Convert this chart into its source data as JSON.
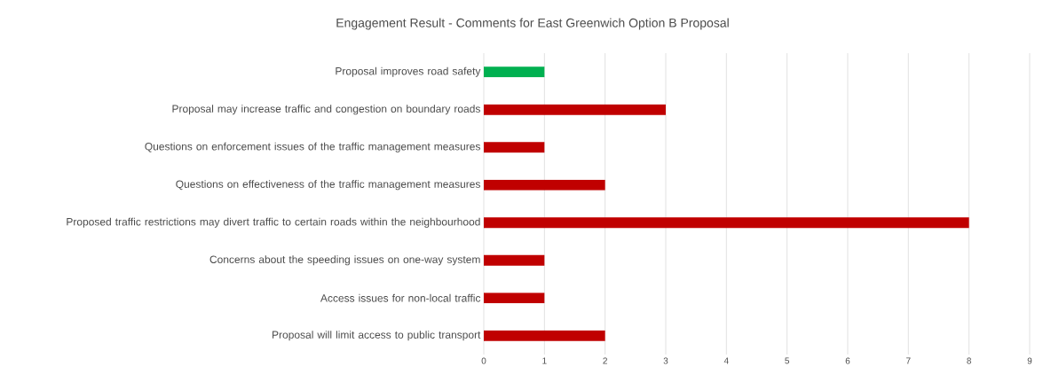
{
  "chart_data": {
    "type": "bar",
    "orientation": "horizontal",
    "title": "Engagement Result - Comments for East Greenwich Option B Proposal",
    "categories": [
      "Proposal improves road safety",
      "Proposal may increase traffic and congestion on boundary roads",
      "Questions on enforcement issues of the traffic management measures",
      "Questions on effectiveness of the traffic management measures",
      "Proposed traffic restrictions may divert traffic to certain roads within the neighbourhood",
      "Concerns about the speeding issues on one-way system",
      "Access issues for non-local traffic",
      "Proposal will limit access to public transport"
    ],
    "values": [
      1,
      3,
      1,
      2,
      8,
      1,
      1,
      2
    ],
    "colors": [
      "#00b050",
      "#c00000",
      "#c00000",
      "#c00000",
      "#c00000",
      "#c00000",
      "#c00000",
      "#c00000"
    ],
    "xlim": [
      0,
      9
    ],
    "xticks": [
      0,
      1,
      2,
      3,
      4,
      5,
      6,
      7,
      8,
      9
    ],
    "grid": "x"
  }
}
